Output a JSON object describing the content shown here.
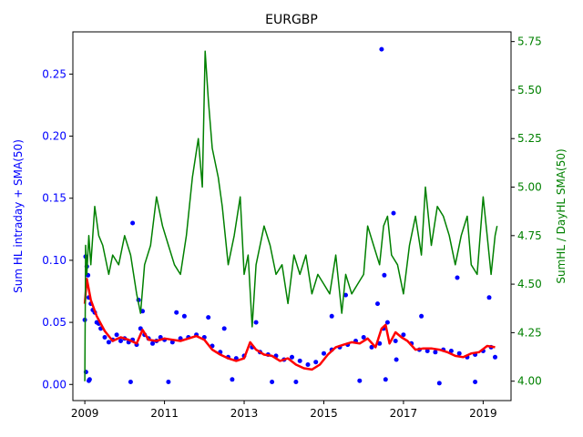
{
  "chart_data": {
    "type": "scatter",
    "title": "EURGBP",
    "xlabel": "",
    "ylabel_left": "Sum HL intraday + SMA(50)",
    "ylabel_right": "SumHL / DayHL SMA(50)",
    "xlim": [
      2008.7,
      2019.7
    ],
    "ylim_left": [
      -0.013,
      0.284
    ],
    "ylim_right": [
      3.9,
      5.8
    ],
    "xticks": [
      2009,
      2011,
      2013,
      2015,
      2017,
      2019
    ],
    "xtick_labels": [
      "2009",
      "2011",
      "2013",
      "2015",
      "2017",
      "2019"
    ],
    "yticks_left": [
      0.0,
      0.05,
      0.1,
      0.15,
      0.2,
      0.25
    ],
    "ytick_labels_left": [
      "0.00",
      "0.05",
      "0.10",
      "0.15",
      "0.20",
      "0.25"
    ],
    "yticks_right": [
      4.0,
      4.25,
      4.5,
      4.75,
      5.0,
      5.25,
      5.5,
      5.75
    ],
    "ytick_labels_right": [
      "4.00",
      "4.25",
      "4.50",
      "4.75",
      "5.00",
      "5.25",
      "5.50",
      "5.75"
    ],
    "colors": {
      "scatter": "#0000ff",
      "sma": "#ff0000",
      "ratio": "#008000",
      "left_axis": "#0000ff",
      "right_axis": "#008000"
    },
    "series": [
      {
        "axis": "left",
        "kind": "scatter",
        "x": [
          2009.0,
          2009.05,
          2009.1,
          2009.2,
          2009.3,
          2009.4,
          2009.5,
          2009.6,
          2009.7,
          2009.8,
          2009.9,
          2010.0,
          2010.1,
          2010.2,
          2010.3,
          2010.4,
          2010.5,
          2010.6,
          2010.7,
          2010.8,
          2010.9,
          2011.0,
          2011.2,
          2011.4,
          2011.6,
          2011.8,
          2012.0,
          2012.2,
          2012.4,
          2012.6,
          2012.8,
          2013.0,
          2013.2,
          2013.4,
          2013.6,
          2013.8,
          2014.0,
          2014.2,
          2014.4,
          2014.6,
          2014.8,
          2015.0,
          2015.2,
          2015.4,
          2015.6,
          2015.8,
          2016.0,
          2016.2,
          2016.4,
          2016.5,
          2016.6,
          2016.8,
          2017.0,
          2017.2,
          2017.4,
          2017.6,
          2017.8,
          2018.0,
          2018.2,
          2018.4,
          2018.6,
          2018.8,
          2019.0,
          2019.2,
          2019.3,
          2009.02,
          2009.08,
          2009.15,
          2009.25,
          2009.35,
          2010.35,
          2010.45,
          2010.2,
          2011.3,
          2011.5,
          2012.1,
          2012.5,
          2013.3,
          2015.2,
          2015.55,
          2016.35,
          2016.52,
          2016.75,
          2017.45,
          2018.35,
          2019.15,
          2009.1,
          2010.15,
          2011.1,
          2012.7,
          2013.7,
          2014.3,
          2015.9,
          2016.55,
          2017.9,
          2018.8,
          2016.45,
          2016.82,
          2009.03,
          2009.12
        ],
        "y": [
          0.052,
          0.095,
          0.07,
          0.06,
          0.05,
          0.045,
          0.038,
          0.034,
          0.036,
          0.04,
          0.035,
          0.037,
          0.034,
          0.036,
          0.032,
          0.045,
          0.04,
          0.037,
          0.033,
          0.035,
          0.038,
          0.036,
          0.034,
          0.037,
          0.038,
          0.04,
          0.038,
          0.031,
          0.026,
          0.022,
          0.021,
          0.023,
          0.03,
          0.026,
          0.024,
          0.023,
          0.02,
          0.022,
          0.019,
          0.016,
          0.018,
          0.025,
          0.028,
          0.03,
          0.032,
          0.035,
          0.038,
          0.03,
          0.033,
          0.045,
          0.05,
          0.035,
          0.04,
          0.033,
          0.028,
          0.027,
          0.026,
          0.028,
          0.027,
          0.025,
          0.022,
          0.024,
          0.027,
          0.03,
          0.022,
          0.103,
          0.088,
          0.065,
          0.058,
          0.049,
          0.068,
          0.059,
          0.13,
          0.058,
          0.055,
          0.054,
          0.045,
          0.05,
          0.055,
          0.072,
          0.065,
          0.088,
          0.138,
          0.055,
          0.086,
          0.07,
          0.003,
          0.002,
          0.002,
          0.004,
          0.002,
          0.002,
          0.003,
          0.004,
          0.001,
          0.002,
          0.27,
          0.02,
          0.01,
          0.004
        ]
      },
      {
        "axis": "left",
        "kind": "line",
        "x": [
          2009.0,
          2009.05,
          2009.15,
          2009.3,
          2009.5,
          2009.7,
          2009.9,
          2010.1,
          2010.3,
          2010.45,
          2010.6,
          2010.8,
          2011.0,
          2011.2,
          2011.4,
          2011.6,
          2011.8,
          2012.0,
          2012.2,
          2012.4,
          2012.6,
          2012.8,
          2013.0,
          2013.15,
          2013.3,
          2013.5,
          2013.7,
          2013.9,
          2014.1,
          2014.3,
          2014.5,
          2014.7,
          2014.9,
          2015.1,
          2015.3,
          2015.5,
          2015.7,
          2015.9,
          2016.1,
          2016.3,
          2016.45,
          2016.55,
          2016.65,
          2016.8,
          2016.95,
          2017.1,
          2017.3,
          2017.5,
          2017.7,
          2017.9,
          2018.1,
          2018.3,
          2018.5,
          2018.7,
          2018.9,
          2019.1,
          2019.3
        ],
        "y": [
          0.065,
          0.085,
          0.068,
          0.055,
          0.043,
          0.035,
          0.038,
          0.036,
          0.033,
          0.044,
          0.036,
          0.035,
          0.037,
          0.036,
          0.035,
          0.037,
          0.039,
          0.036,
          0.028,
          0.024,
          0.021,
          0.019,
          0.021,
          0.034,
          0.028,
          0.024,
          0.023,
          0.019,
          0.021,
          0.016,
          0.013,
          0.012,
          0.016,
          0.024,
          0.03,
          0.032,
          0.034,
          0.033,
          0.037,
          0.03,
          0.045,
          0.048,
          0.033,
          0.042,
          0.038,
          0.035,
          0.028,
          0.029,
          0.029,
          0.028,
          0.026,
          0.023,
          0.022,
          0.025,
          0.026,
          0.031,
          0.03
        ]
      },
      {
        "axis": "right",
        "kind": "line",
        "x": [
          2009.0,
          2009.02,
          2009.05,
          2009.1,
          2009.15,
          2009.25,
          2009.35,
          2009.45,
          2009.6,
          2009.7,
          2009.85,
          2010.0,
          2010.15,
          2010.3,
          2010.4,
          2010.5,
          2010.65,
          2010.8,
          2010.95,
          2011.1,
          2011.25,
          2011.4,
          2011.55,
          2011.7,
          2011.85,
          2011.95,
          2012.02,
          2012.1,
          2012.2,
          2012.35,
          2012.45,
          2012.6,
          2012.75,
          2012.9,
          2013.0,
          2013.1,
          2013.2,
          2013.3,
          2013.5,
          2013.65,
          2013.8,
          2013.95,
          2014.1,
          2014.25,
          2014.4,
          2014.55,
          2014.7,
          2014.85,
          2015.0,
          2015.15,
          2015.3,
          2015.45,
          2015.55,
          2015.7,
          2015.85,
          2016.0,
          2016.1,
          2016.25,
          2016.4,
          2016.5,
          2016.6,
          2016.7,
          2016.85,
          2017.0,
          2017.15,
          2017.3,
          2017.45,
          2017.55,
          2017.7,
          2017.85,
          2018.0,
          2018.15,
          2018.3,
          2018.45,
          2018.6,
          2018.7,
          2018.85,
          2019.0,
          2019.1,
          2019.2,
          2019.3,
          2019.35
        ],
        "y": [
          4.0,
          4.7,
          4.55,
          4.75,
          4.6,
          4.9,
          4.75,
          4.7,
          4.55,
          4.65,
          4.6,
          4.75,
          4.65,
          4.45,
          4.35,
          4.6,
          4.7,
          4.95,
          4.8,
          4.7,
          4.6,
          4.55,
          4.75,
          5.05,
          5.25,
          5.0,
          5.7,
          5.45,
          5.2,
          5.05,
          4.9,
          4.6,
          4.75,
          4.95,
          4.55,
          4.65,
          4.28,
          4.6,
          4.8,
          4.7,
          4.55,
          4.6,
          4.4,
          4.65,
          4.55,
          4.65,
          4.45,
          4.55,
          4.5,
          4.45,
          4.65,
          4.35,
          4.55,
          4.45,
          4.5,
          4.55,
          4.8,
          4.7,
          4.6,
          4.8,
          4.85,
          4.65,
          4.6,
          4.45,
          4.7,
          4.85,
          4.65,
          5.0,
          4.7,
          4.9,
          4.85,
          4.75,
          4.6,
          4.75,
          4.85,
          4.6,
          4.55,
          4.95,
          4.75,
          4.55,
          4.75,
          4.8
        ]
      }
    ]
  }
}
